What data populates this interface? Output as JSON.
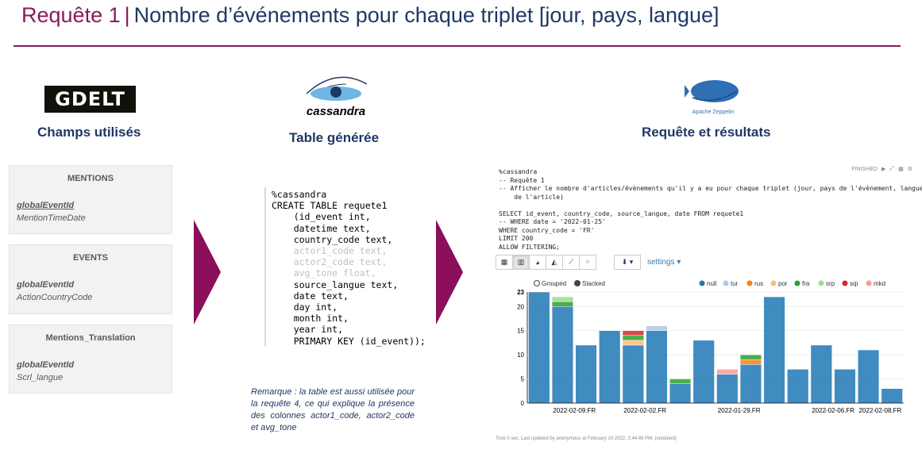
{
  "header": {
    "title_part1": "Requête 1",
    "separator": "|",
    "title_part2": "Nombre d’événements pour chaque triplet [jour, pays, langue]"
  },
  "gdelt": {
    "logo_text": "GDELT",
    "heading": "Champs utilisés",
    "boxes": [
      {
        "name": "MENTIONS",
        "field1": "globalEventId",
        "field2": "MentionTimeDate"
      },
      {
        "name": "EVENTS",
        "field1": "globalEventId",
        "field2": "ActionCountryCode"
      },
      {
        "name": "Mentions_Translation",
        "field1": "globalEventId",
        "field2": "Scrl_langue"
      }
    ]
  },
  "cassandra": {
    "logo_text": "cassandra",
    "heading": "Table générée",
    "code_lines": [
      {
        "text": "%cassandra",
        "muted": false
      },
      {
        "text": "CREATE TABLE requete1",
        "muted": false
      },
      {
        "text": "    (id_event int,",
        "muted": false
      },
      {
        "text": "    datetime text,",
        "muted": false
      },
      {
        "text": "    country_code text,",
        "muted": false
      },
      {
        "text": "    actor1_code text,",
        "muted": true
      },
      {
        "text": "    actor2_code text,",
        "muted": true
      },
      {
        "text": "    avg_tone float,",
        "muted": true
      },
      {
        "text": "    source_langue text,",
        "muted": false
      },
      {
        "text": "    date text,",
        "muted": false
      },
      {
        "text": "    day int,",
        "muted": false
      },
      {
        "text": "    month int,",
        "muted": false
      },
      {
        "text": "    year int,",
        "muted": false
      },
      {
        "text": "    PRIMARY KEY (id_event));",
        "muted": false
      }
    ],
    "remark": "Remarque : la table est aussi utilisée pour la requête 4, ce qui explique la présence des colonnes actor1_code, actor2_code et avg_tone"
  },
  "zeppelin": {
    "logo_text": "Apache Zeppelin",
    "heading": "Requête et résultats",
    "status": "FINISHED",
    "code_lines": [
      "%cassandra",
      "-- Requête 1",
      "-- Afficher le nombre d'articles/évènements qu'il y a eu pour chaque triplet (jour, pays de l'évènement, langue",
      "    de l'article)",
      "",
      "SELECT id_event, country_code, source_langue, date FROM requete1",
      "-- WHERE date = '2022-01-25'",
      "WHERE country_code = 'FR'",
      "LIMIT 200",
      "ALLOW FILTERING;"
    ],
    "settings_label": "settings",
    "footer": "Took 0 sec. Last updated by anonymous at February 10 2022, 2:44:48 PM. (outdated)"
  },
  "chart_data": {
    "type": "bar",
    "stacked": true,
    "stack_modes": [
      "Grouped",
      "Stacked"
    ],
    "selected_mode": "Stacked",
    "ylim": [
      0,
      23
    ],
    "y_ticks": [
      0,
      5,
      10,
      15,
      20,
      23
    ],
    "x_tick_labels": [
      "2022-02-09.FR",
      "2022-02-02.FR",
      "2022-01-29.FR",
      "2022-02-06.FR",
      "2022-02-08.FR"
    ],
    "legend": [
      "null",
      "tur",
      "rus",
      "por",
      "fra",
      "srp",
      "sqi",
      "mkd"
    ],
    "colors": {
      "null": "#1f77b4",
      "tur": "#aec7e8",
      "rus": "#ff7f0e",
      "por": "#ffbb78",
      "fra": "#2ca02c",
      "srp": "#98df8a",
      "sqi": "#d62728",
      "mkd": "#ff9896"
    },
    "legend_placement": "top-right",
    "bars": [
      {
        "null": 23
      },
      {
        "null": 20,
        "fra": 1,
        "srp": 1
      },
      {
        "null": 12
      },
      {
        "null": 15
      },
      {
        "null": 12,
        "fra": 1,
        "por": 1,
        "sqi": 1
      },
      {
        "null": 15,
        "tur": 1
      },
      {
        "null": 4,
        "fra": 1
      },
      {
        "null": 13
      },
      {
        "null": 6,
        "mkd": 1
      },
      {
        "null": 8,
        "rus": 1,
        "fra": 1
      },
      {
        "null": 22
      },
      {
        "null": 7
      },
      {
        "null": 12
      },
      {
        "null": 7
      },
      {
        "null": 11
      },
      {
        "null": 3
      }
    ]
  }
}
